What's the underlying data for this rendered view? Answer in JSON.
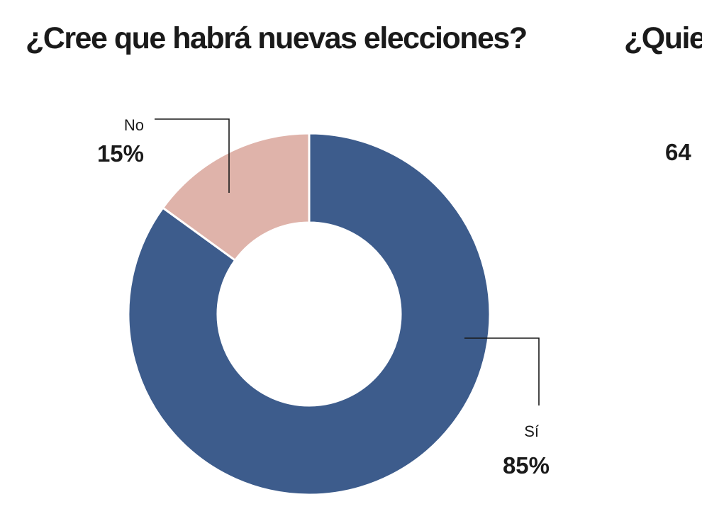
{
  "title": "¿Cree que habrá nuevas elecciones?",
  "next_panel": {
    "title_fragment": "¿Quie",
    "value_fragment": "64"
  },
  "chart_data": {
    "type": "pie",
    "title": "¿Cree que habrá nuevas elecciones?",
    "donut": true,
    "slices": [
      {
        "label": "Sí",
        "value": 85,
        "value_label": "85%",
        "color": "#3d5c8c"
      },
      {
        "label": "No",
        "value": 15,
        "value_label": "15%",
        "color": "#dfb3aa"
      }
    ]
  }
}
